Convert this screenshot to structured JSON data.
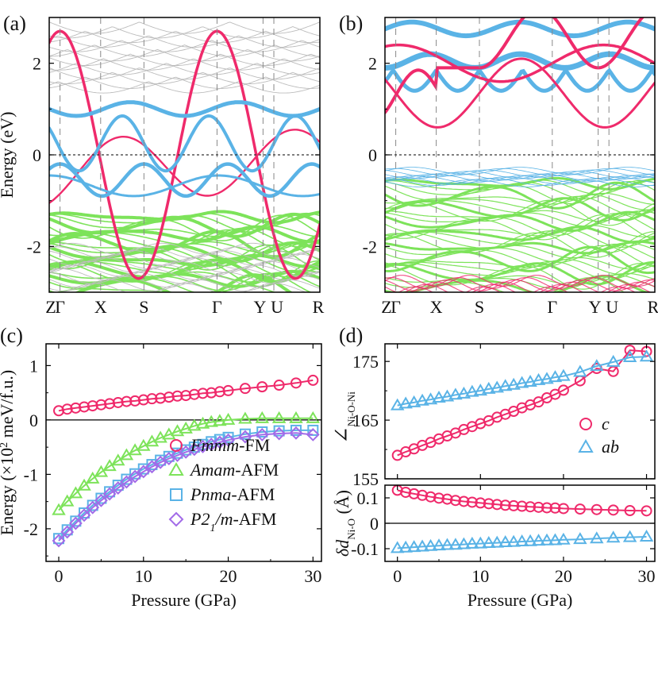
{
  "figure": {
    "panels": [
      "(a)",
      "(b)",
      "(c)",
      "(d)"
    ],
    "colors": {
      "pink": "#ef2a6b",
      "blue": "#5ab3e6",
      "green": "#7de35a",
      "purple": "#a26be8",
      "gray": "#bcbcbc"
    }
  },
  "chart_data": [
    {
      "id": "a",
      "type": "line",
      "title": "(a)",
      "ylabel": "Energy (eV)",
      "xlabel": "",
      "ylim": [
        -3,
        3
      ],
      "yticks": [
        "-2",
        "0",
        "2"
      ],
      "yticks_values": [
        -2,
        0,
        2
      ],
      "kpath": [
        "Z",
        "Γ",
        "X",
        "S",
        "Γ",
        "Y",
        "U",
        "R"
      ],
      "kpath_positions": [
        0,
        0.04,
        0.19,
        0.35,
        0.62,
        0.79,
        0.83,
        1.0
      ],
      "fermi_level": 0,
      "band_groups": [
        {
          "name": "pink bands",
          "color": "#ef2a6b"
        },
        {
          "name": "blue bands",
          "color": "#5ab3e6"
        },
        {
          "name": "green bands",
          "color": "#7de35a"
        },
        {
          "name": "gray bands",
          "color": "#bcbcbc"
        }
      ]
    },
    {
      "id": "b",
      "type": "line",
      "title": "(b)",
      "ylabel": "",
      "xlabel": "",
      "ylim": [
        -3,
        3
      ],
      "yticks": [
        "-2",
        "0",
        "2"
      ],
      "yticks_values": [
        -2,
        0,
        2
      ],
      "kpath": [
        "Z",
        "Γ",
        "X",
        "S",
        "Γ",
        "Y",
        "U",
        "R"
      ],
      "kpath_positions": [
        0,
        0.04,
        0.19,
        0.35,
        0.62,
        0.79,
        0.83,
        1.0
      ],
      "fermi_level": 0,
      "band_groups": [
        {
          "name": "pink bands",
          "color": "#ef2a6b"
        },
        {
          "name": "blue bands",
          "color": "#5ab3e6"
        },
        {
          "name": "green bands",
          "color": "#7de35a"
        }
      ]
    },
    {
      "id": "c",
      "type": "scatter",
      "title": "(c)",
      "xlabel": "Pressure (GPa)",
      "ylabel_parts": [
        "Energy (×10",
        "2",
        " meV/f.u.)"
      ],
      "xlim": [
        -1.5,
        31
      ],
      "ylim": [
        -2.6,
        1.4
      ],
      "xticks": [
        "0",
        "10",
        "20",
        "30"
      ],
      "xticks_values": [
        0,
        10,
        20,
        30
      ],
      "yticks": [
        "-2",
        "-1",
        "0",
        "1"
      ],
      "yticks_values": [
        -2,
        -1,
        0,
        1
      ],
      "zero_line": 0,
      "series": [
        {
          "name": "Fmmm-FM",
          "label_it": "Fmmm",
          "label_rest": "-FM",
          "marker": "circle",
          "color": "#ef2a6b",
          "x": [
            0,
            1,
            2,
            3,
            4,
            5,
            6,
            7,
            8,
            9,
            10,
            11,
            12,
            13,
            14,
            15,
            16,
            17,
            18,
            19,
            20,
            22,
            24,
            26,
            28,
            30
          ],
          "y": [
            0.17,
            0.2,
            0.22,
            0.24,
            0.26,
            0.28,
            0.3,
            0.32,
            0.34,
            0.35,
            0.37,
            0.39,
            0.4,
            0.42,
            0.44,
            0.45,
            0.47,
            0.49,
            0.5,
            0.52,
            0.54,
            0.58,
            0.61,
            0.64,
            0.68,
            0.73
          ]
        },
        {
          "name": "Amam-AFM",
          "label_it": "Amam",
          "label_rest": "-AFM",
          "marker": "triangle",
          "color": "#7de35a",
          "x": [
            0,
            1,
            2,
            3,
            4,
            5,
            6,
            7,
            8,
            9,
            10,
            11,
            12,
            13,
            14,
            15,
            16,
            17,
            18,
            19,
            20,
            22,
            24,
            26,
            28,
            30
          ],
          "y": [
            -1.66,
            -1.5,
            -1.35,
            -1.21,
            -1.08,
            -0.96,
            -0.85,
            -0.75,
            -0.65,
            -0.56,
            -0.48,
            -0.4,
            -0.33,
            -0.27,
            -0.21,
            -0.16,
            -0.11,
            -0.07,
            -0.04,
            -0.02,
            0.0,
            0.02,
            0.03,
            0.03,
            0.03,
            0.03
          ]
        },
        {
          "name": "Pnma-AFM",
          "label_it": "Pnma",
          "label_rest": "-AFM",
          "marker": "square",
          "color": "#5ab3e6",
          "x": [
            0,
            1,
            2,
            3,
            4,
            5,
            6,
            7,
            8,
            9,
            10,
            11,
            12,
            13,
            14,
            15,
            16,
            17,
            18,
            19,
            20,
            22,
            24,
            26,
            28,
            30
          ],
          "y": [
            -2.18,
            -2.02,
            -1.86,
            -1.71,
            -1.57,
            -1.44,
            -1.32,
            -1.2,
            -1.09,
            -0.99,
            -0.9,
            -0.82,
            -0.74,
            -0.67,
            -0.61,
            -0.55,
            -0.5,
            -0.45,
            -0.4,
            -0.36,
            -0.32,
            -0.26,
            -0.22,
            -0.2,
            -0.19,
            -0.19
          ]
        },
        {
          "name": "P21/m-AFM",
          "label_it": "P2",
          "label_sub": "1",
          "label_it2": "/m",
          "label_rest": "-AFM",
          "marker": "diamond",
          "color": "#a26be8",
          "x": [
            0,
            1,
            2,
            3,
            4,
            5,
            6,
            7,
            8,
            9,
            10,
            11,
            12,
            13,
            14,
            15,
            16,
            17,
            18,
            19,
            20,
            22,
            24,
            26,
            28,
            30
          ],
          "y": [
            -2.22,
            -2.06,
            -1.9,
            -1.75,
            -1.61,
            -1.48,
            -1.36,
            -1.25,
            -1.14,
            -1.04,
            -0.95,
            -0.86,
            -0.78,
            -0.71,
            -0.65,
            -0.59,
            -0.54,
            -0.49,
            -0.45,
            -0.41,
            -0.37,
            -0.31,
            -0.27,
            -0.25,
            -0.24,
            -0.27
          ]
        }
      ]
    },
    {
      "id": "d-top",
      "type": "scatter",
      "title": "(d)",
      "ylabel_main": "∠",
      "ylabel_sub": "Ni-O-Ni",
      "xlim": [
        -1.5,
        31
      ],
      "ylim": [
        155,
        178
      ],
      "yticks": [
        "155",
        "165",
        "175"
      ],
      "yticks_values": [
        155,
        165,
        175
      ],
      "series": [
        {
          "name": "c",
          "marker": "circle",
          "color": "#ef2a6b",
          "x": [
            0,
            1,
            2,
            3,
            4,
            5,
            6,
            7,
            8,
            9,
            10,
            11,
            12,
            13,
            14,
            15,
            16,
            17,
            18,
            19,
            20,
            22,
            24,
            26,
            28,
            30
          ],
          "y": [
            159.0,
            159.6,
            160.1,
            160.7,
            161.2,
            161.8,
            162.3,
            162.8,
            163.4,
            163.9,
            164.4,
            164.9,
            165.5,
            166.0,
            166.5,
            167.1,
            167.6,
            168.1,
            168.8,
            169.4,
            170.1,
            171.7,
            173.8,
            173.3,
            176.9,
            176.7
          ]
        },
        {
          "name": "ab",
          "marker": "triangle",
          "color": "#5ab3e6",
          "x": [
            0,
            1,
            2,
            3,
            4,
            5,
            6,
            7,
            8,
            9,
            10,
            11,
            12,
            13,
            14,
            15,
            16,
            17,
            18,
            19,
            20,
            22,
            24,
            26,
            28,
            30
          ],
          "y": [
            167.5,
            167.8,
            168.0,
            168.3,
            168.5,
            168.8,
            169.0,
            169.3,
            169.5,
            169.8,
            170.0,
            170.3,
            170.5,
            170.8,
            171.0,
            171.3,
            171.5,
            171.8,
            172.0,
            172.3,
            172.5,
            173.2,
            174.2,
            174.9,
            175.7,
            175.8
          ]
        }
      ]
    },
    {
      "id": "d-bottom",
      "type": "scatter",
      "xlabel": "Pressure (GPa)",
      "ylabel_main": "δd",
      "ylabel_sub": "Ni-O",
      "ylabel_unit": " (Å)",
      "xlim": [
        -1.5,
        31
      ],
      "ylim": [
        -0.15,
        0.15
      ],
      "xticks": [
        "0",
        "10",
        "20",
        "30"
      ],
      "xticks_values": [
        0,
        10,
        20,
        30
      ],
      "yticks": [
        "-0.1",
        "0",
        "0.1"
      ],
      "yticks_values": [
        -0.1,
        0,
        0.1
      ],
      "zero_line": 0,
      "series": [
        {
          "name": "c",
          "marker": "circle",
          "color": "#ef2a6b",
          "x": [
            0,
            1,
            2,
            3,
            4,
            5,
            6,
            7,
            8,
            9,
            10,
            11,
            12,
            13,
            14,
            15,
            16,
            17,
            18,
            19,
            20,
            22,
            24,
            26,
            28,
            30
          ],
          "y": [
            0.13,
            0.122,
            0.116,
            0.11,
            0.104,
            0.099,
            0.095,
            0.09,
            0.086,
            0.083,
            0.08,
            0.077,
            0.074,
            0.071,
            0.069,
            0.067,
            0.065,
            0.063,
            0.061,
            0.06,
            0.058,
            0.056,
            0.054,
            0.052,
            0.05,
            0.049
          ]
        },
        {
          "name": "ab",
          "marker": "triangle",
          "color": "#5ab3e6",
          "x": [
            0,
            1,
            2,
            3,
            4,
            5,
            6,
            7,
            8,
            9,
            10,
            11,
            12,
            13,
            14,
            15,
            16,
            17,
            18,
            19,
            20,
            22,
            24,
            26,
            28,
            30
          ],
          "y": [
            -0.098,
            -0.096,
            -0.094,
            -0.092,
            -0.09,
            -0.088,
            -0.086,
            -0.085,
            -0.083,
            -0.081,
            -0.08,
            -0.078,
            -0.077,
            -0.075,
            -0.074,
            -0.072,
            -0.071,
            -0.069,
            -0.068,
            -0.067,
            -0.065,
            -0.063,
            -0.06,
            -0.057,
            -0.055,
            -0.053
          ]
        }
      ]
    }
  ]
}
